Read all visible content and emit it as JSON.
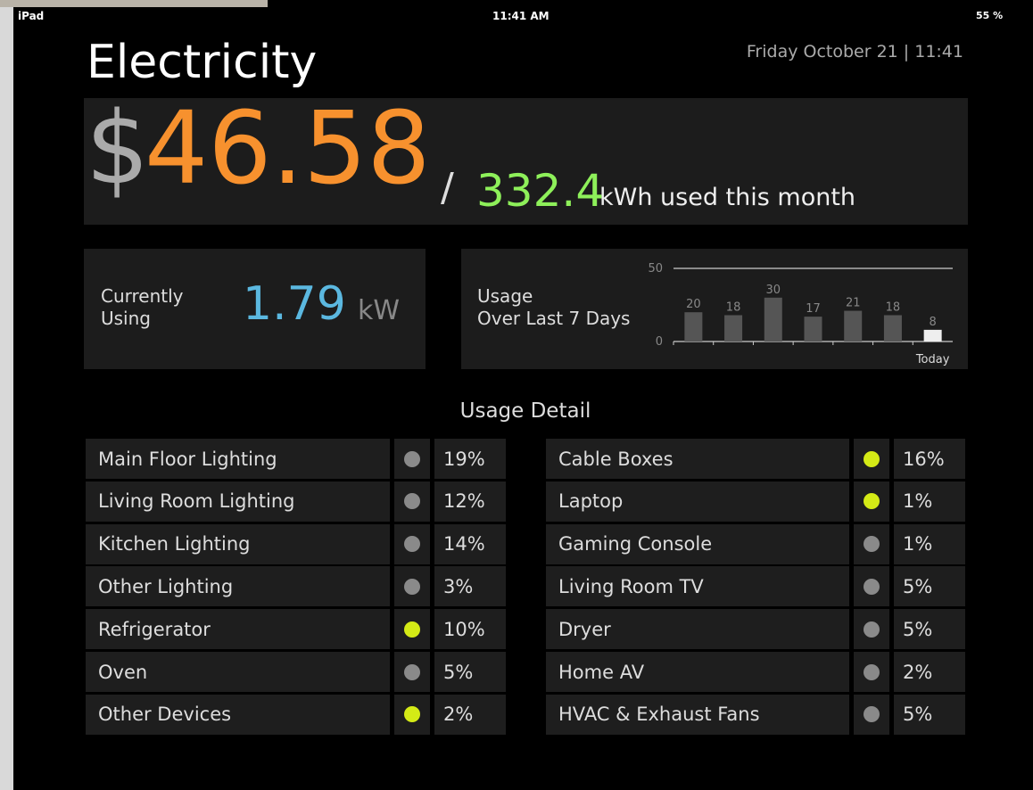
{
  "status_bar": {
    "device": "iPad",
    "time": "11:41 AM",
    "battery": "55 %"
  },
  "header": {
    "title": "Electricity",
    "datetime": "Friday October 21 | 11:41"
  },
  "summary": {
    "currency": "$",
    "cost": "46.58",
    "separator": "/",
    "energy": "332.4",
    "energy_caption": "kWh used this month"
  },
  "current": {
    "label_lines": [
      "Currently",
      "Using"
    ],
    "value": "1.79",
    "unit": "kW"
  },
  "usage_chart": {
    "type": "bar",
    "label_lines": [
      "Usage",
      "Over Last 7 Days"
    ],
    "categories": [
      null,
      null,
      null,
      null,
      null,
      null,
      "Today"
    ],
    "values": [
      20,
      18,
      30,
      17,
      21,
      18,
      8
    ],
    "ylim": [
      0,
      50
    ],
    "yticks": [
      0,
      50
    ]
  },
  "detail": {
    "title": "Usage Detail",
    "columns": [
      [
        {
          "label": "Main Floor Lighting",
          "share": "19%",
          "active": false
        },
        {
          "label": "Living Room Lighting",
          "share": "12%",
          "active": false
        },
        {
          "label": "Kitchen Lighting",
          "share": "14%",
          "active": false
        },
        {
          "label": "Other Lighting",
          "share": "3%",
          "active": false
        },
        {
          "label": "Refrigerator",
          "share": "10%",
          "active": true
        },
        {
          "label": "Oven",
          "share": "5%",
          "active": false
        },
        {
          "label": "Other Devices",
          "share": "2%",
          "active": true
        }
      ],
      [
        {
          "label": "Cable Boxes",
          "share": "16%",
          "active": true
        },
        {
          "label": "Laptop",
          "share": "1%",
          "active": true
        },
        {
          "label": "Gaming Console",
          "share": "1%",
          "active": false
        },
        {
          "label": "Living Room TV",
          "share": "5%",
          "active": false
        },
        {
          "label": "Dryer",
          "share": "5%",
          "active": false
        },
        {
          "label": "Home AV",
          "share": "2%",
          "active": false
        },
        {
          "label": "HVAC & Exhaust Fans",
          "share": "5%",
          "active": false
        }
      ]
    ]
  }
}
